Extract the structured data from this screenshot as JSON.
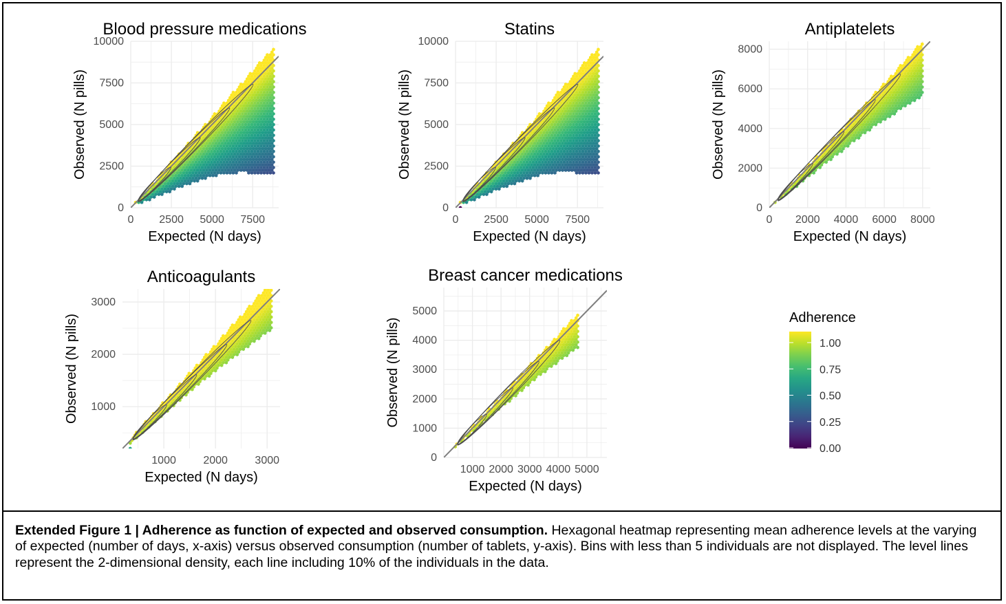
{
  "chart_data": [
    {
      "type": "heatmap",
      "subtype": "hexbin with density contours",
      "title": "Blood pressure medications",
      "xlabel": "Expected (N days)",
      "ylabel": "Observed (N pills)",
      "xlim": [
        0,
        9100
      ],
      "ylim": [
        0,
        10000
      ],
      "xticks": [
        "0",
        "2500",
        "5000",
        "7500"
      ],
      "yticks": [
        "0",
        "2500",
        "5000",
        "7500",
        "10000"
      ],
      "xtick_values": [
        0,
        2500,
        5000,
        7500
      ],
      "ytick_values": [
        0,
        2500,
        5000,
        7500,
        10000
      ],
      "x_range": [
        300,
        8800
      ],
      "adherence_range": [
        0.3,
        1.1
      ],
      "low_curve_power": 1.3,
      "identity_line": true,
      "grid": true
    },
    {
      "type": "heatmap",
      "subtype": "hexbin with density contours",
      "title": "Statins",
      "xlabel": "Expected (N days)",
      "ylabel": "Observed (N pills)",
      "xlim": [
        0,
        9100
      ],
      "ylim": [
        0,
        10000
      ],
      "xticks": [
        "0",
        "2500",
        "5000",
        "7500"
      ],
      "yticks": [
        "0",
        "2500",
        "5000",
        "7500",
        "10000"
      ],
      "xtick_values": [
        0,
        2500,
        5000,
        7500
      ],
      "ytick_values": [
        0,
        2500,
        5000,
        7500,
        10000
      ],
      "x_range": [
        300,
        8800
      ],
      "adherence_range": [
        0.3,
        1.1
      ],
      "low_curve_power": 1.4,
      "identity_line": true,
      "grid": true
    },
    {
      "type": "heatmap",
      "subtype": "hexbin with density contours",
      "title": "Antiplatelets",
      "xlabel": "Expected (N days)",
      "ylabel": "Observed (N pills)",
      "xlim": [
        0,
        8400
      ],
      "ylim": [
        0,
        8400
      ],
      "xticks": [
        "0",
        "2000",
        "4000",
        "6000",
        "8000"
      ],
      "yticks": [
        "0",
        "2000",
        "4000",
        "6000",
        "8000"
      ],
      "xtick_values": [
        0,
        2000,
        4000,
        6000,
        8000
      ],
      "ytick_values": [
        0,
        2000,
        4000,
        6000,
        8000
      ],
      "x_range": [
        300,
        8000
      ],
      "adherence_range": [
        0.7,
        1.05
      ],
      "low_curve_power": 1.1,
      "identity_line": true,
      "grid": true
    },
    {
      "type": "heatmap",
      "subtype": "hexbin with density contours",
      "title": "Anticoagulants",
      "xlabel": "Expected (N days)",
      "ylabel": "Observed (N pills)",
      "xlim": [
        200,
        3250
      ],
      "ylim": [
        200,
        3250
      ],
      "xticks": [
        "1000",
        "2000",
        "3000"
      ],
      "yticks": [
        "1000",
        "2000",
        "3000"
      ],
      "xtick_values": [
        1000,
        2000,
        3000
      ],
      "ytick_values": [
        1000,
        2000,
        3000
      ],
      "x_range": [
        350,
        3100
      ],
      "adherence_range": [
        0.8,
        1.1
      ],
      "low_curve_power": 1.1,
      "identity_line": true,
      "grid": true
    },
    {
      "type": "heatmap",
      "subtype": "hexbin with density contours",
      "title": "Breast cancer medications",
      "xlabel": "Expected (N days)",
      "ylabel": "Observed (N pills)",
      "xlim": [
        0,
        5700
      ],
      "ylim": [
        0,
        5800
      ],
      "xticks": [
        "1000",
        "2000",
        "3000",
        "4000",
        "5000"
      ],
      "yticks": [
        "0",
        "1000",
        "2000",
        "3000",
        "4000",
        "5000"
      ],
      "xtick_values": [
        1000,
        2000,
        3000,
        4000,
        5000
      ],
      "ytick_values": [
        0,
        1000,
        2000,
        3000,
        4000,
        5000
      ],
      "x_range": [
        400,
        4700
      ],
      "adherence_range": [
        0.8,
        1.05
      ],
      "low_curve_power": 1.05,
      "identity_line": true,
      "grid": true
    }
  ],
  "legend": {
    "title": "Adherence",
    "ticks": [
      "1.00",
      "0.75",
      "0.50",
      "0.25",
      "0.00"
    ],
    "tick_values": [
      1.0,
      0.75,
      0.5,
      0.25,
      0.0
    ],
    "colormap": "viridis",
    "colors": [
      "#440154",
      "#3b528b",
      "#21918c",
      "#5ec962",
      "#fde725"
    ]
  },
  "caption": {
    "bold": "Extended Figure 1 | Adherence as function of expected and observed consumption.",
    "text": " Hexagonal heatmap representing mean adherence levels at the varying of expected (number of days, x-axis) versus observed consumption (number of tablets, y-axis). Bins with less than 5 individuals are not displayed. The level lines represent the 2-dimensional density, each line including 10% of the individuals in the data."
  },
  "colors": {
    "grid": "#ebebeb",
    "identity_line": "#7f7f7f",
    "contour": "#4d4d4d",
    "frame": "#000000"
  }
}
